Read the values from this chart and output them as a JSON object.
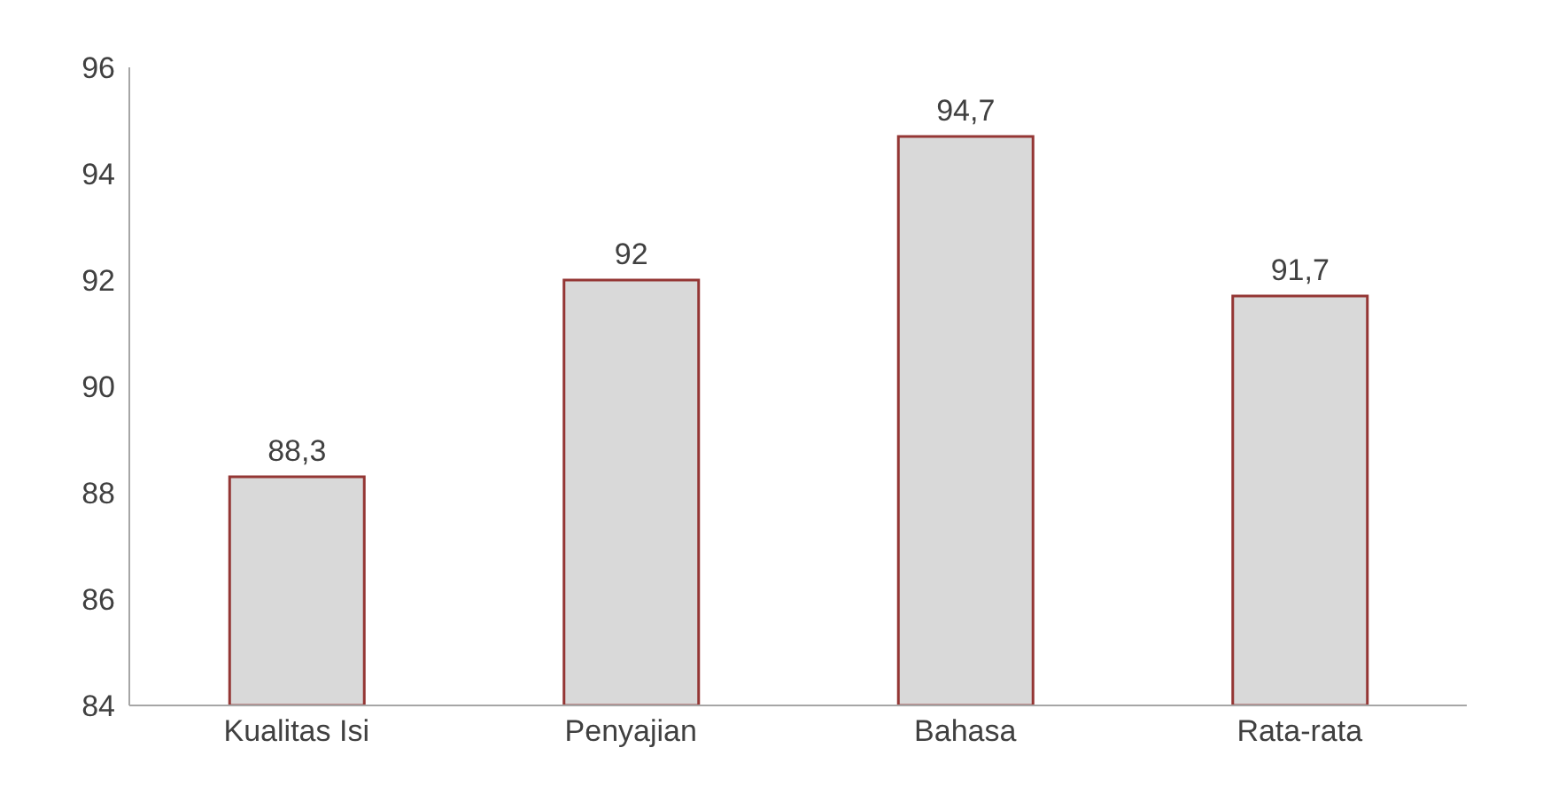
{
  "chart_data": {
    "type": "bar",
    "categories": [
      "Kualitas Isi",
      "Penyajian",
      "Bahasa",
      "Rata-rata"
    ],
    "values": [
      88.3,
      92,
      94.7,
      91.7
    ],
    "value_labels": [
      "88,3",
      "92",
      "94,7",
      "91,7"
    ],
    "color": "#d9d9d9",
    "ylim": [
      84,
      96
    ],
    "yticks": [
      84,
      86,
      88,
      90,
      92,
      94,
      96
    ],
    "grid": false
  }
}
